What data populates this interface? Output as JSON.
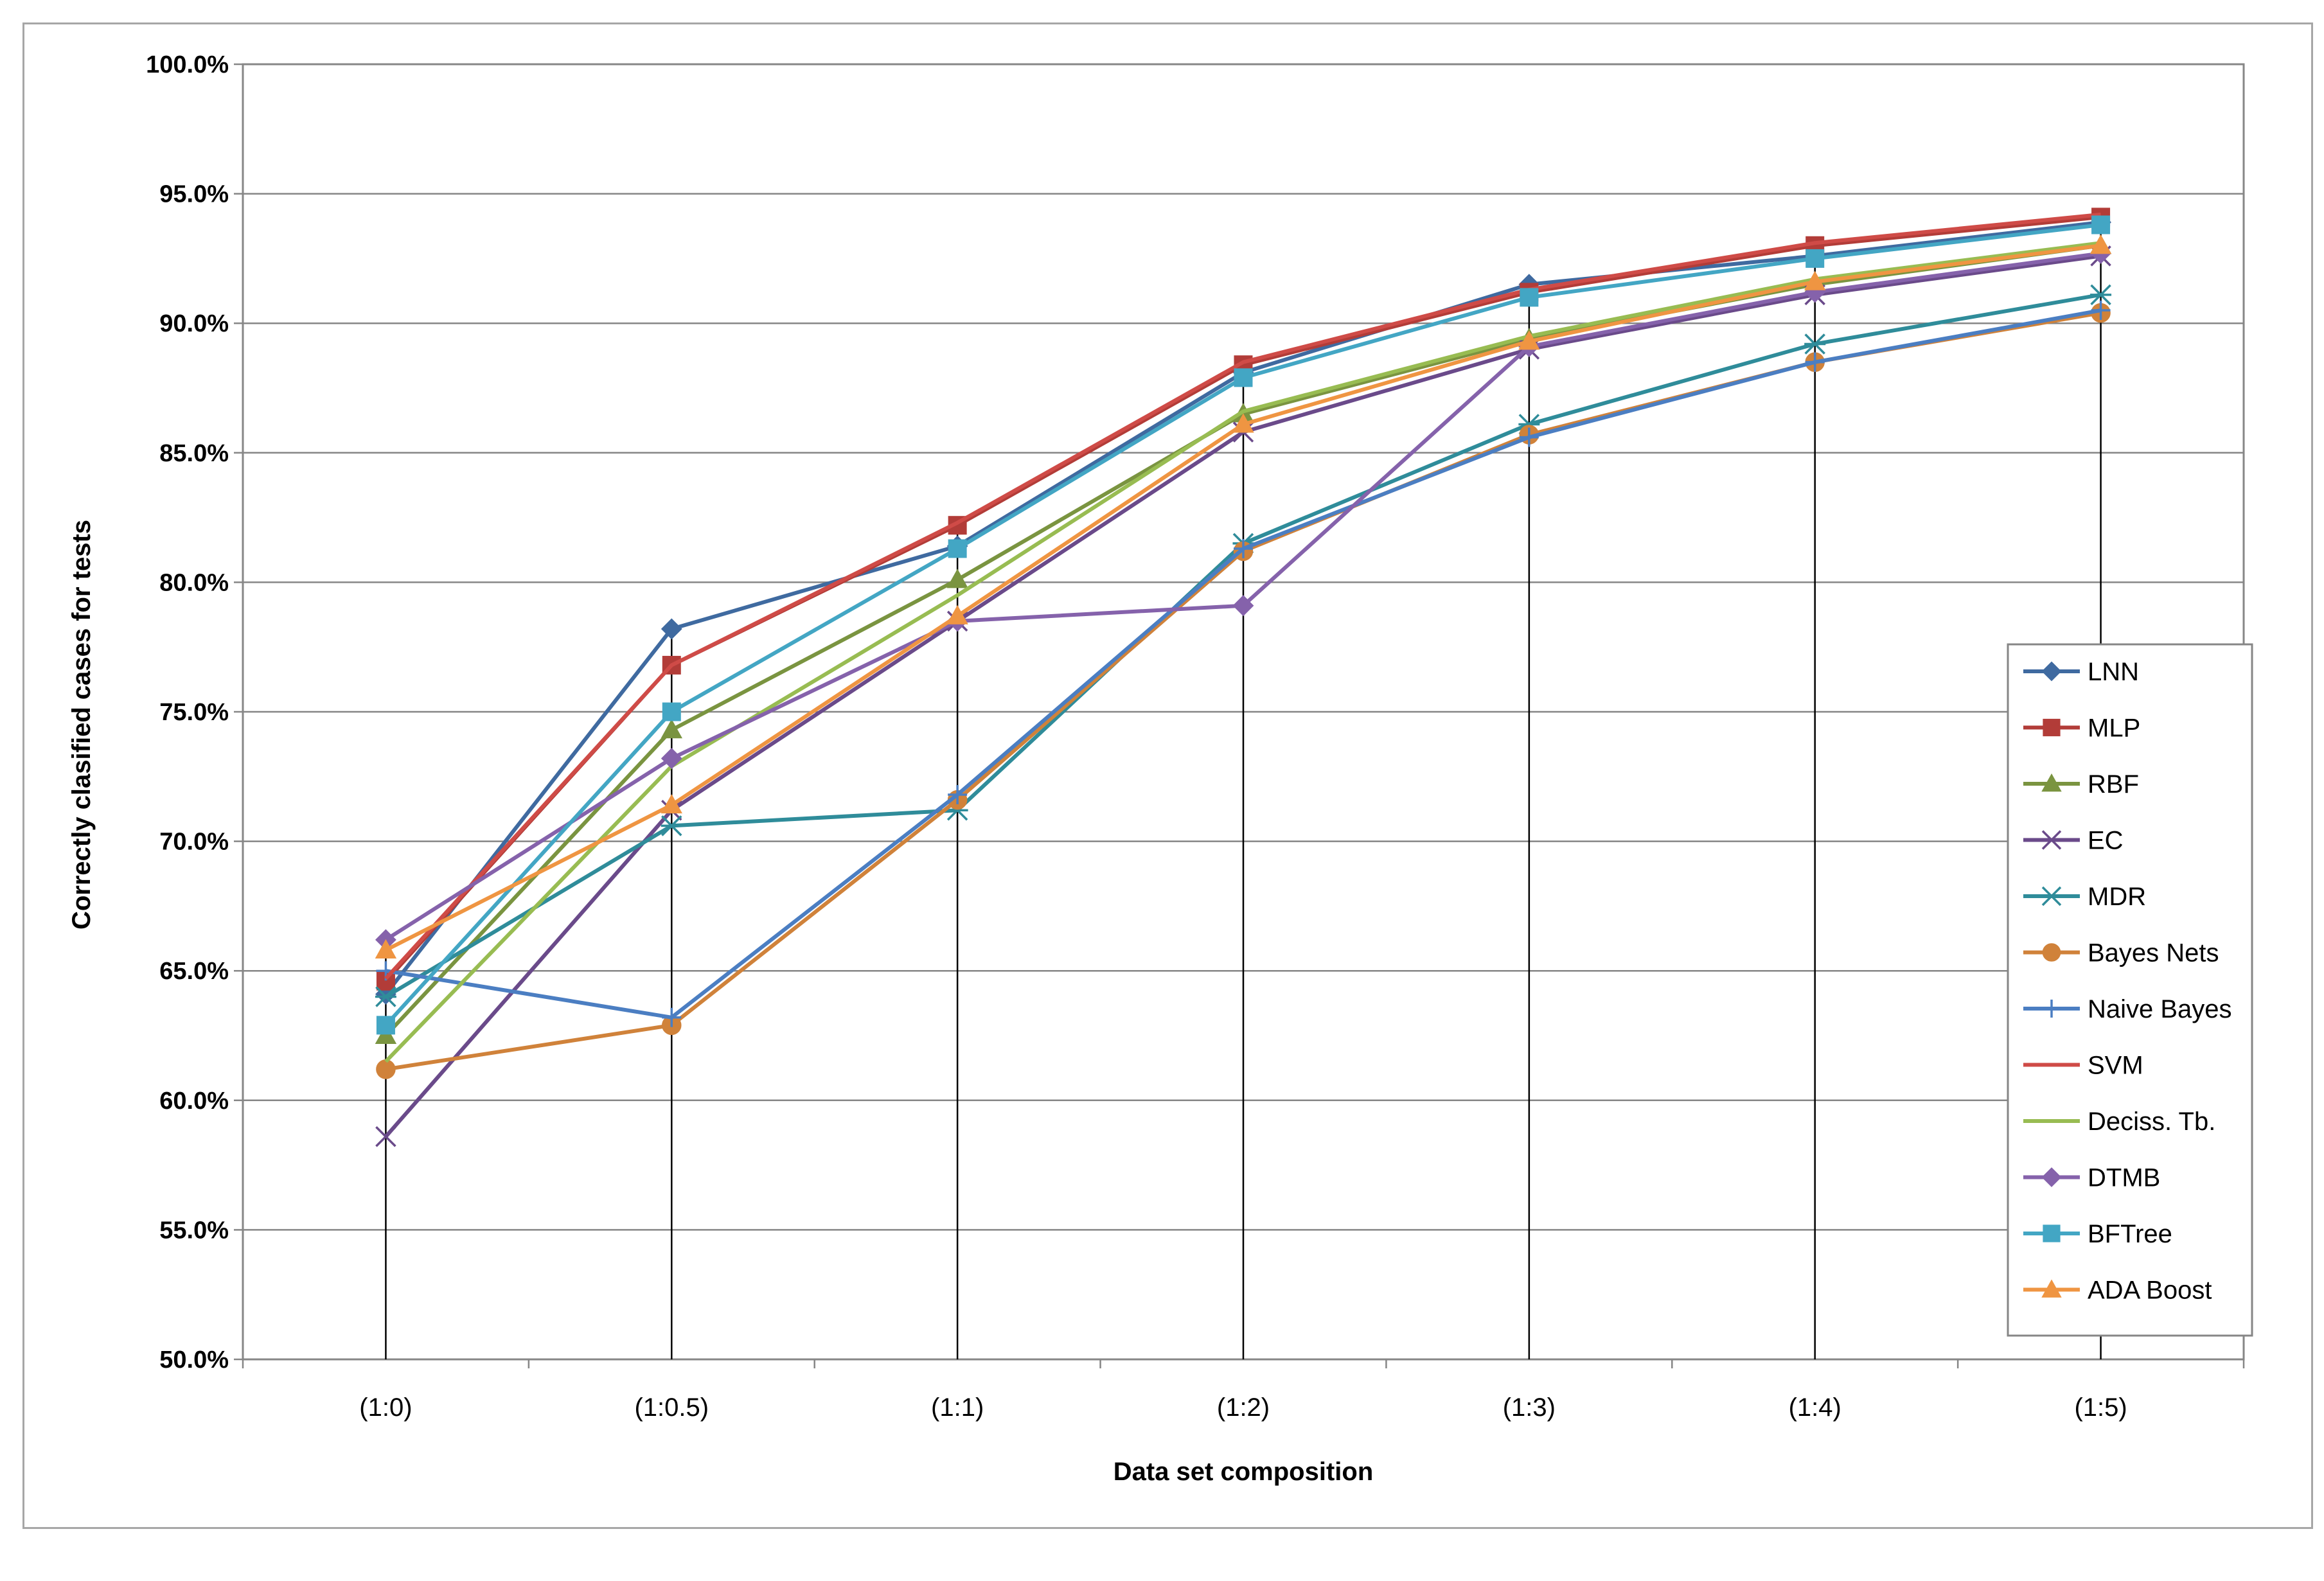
{
  "chart_data": {
    "type": "line",
    "title": "",
    "xlabel": "Data set composition",
    "ylabel": "Correctly clasified cases for tests",
    "categories": [
      "(1:0)",
      "(1:0.5)",
      "(1:1)",
      "(1:2)",
      "(1:3)",
      "(1:4)",
      "(1:5)"
    ],
    "ylim": [
      0.5,
      1.0
    ],
    "yticks": [
      {
        "value": 0.5,
        "label": "50.0%"
      },
      {
        "value": 0.55,
        "label": "55.0%"
      },
      {
        "value": 0.6,
        "label": "60.0%"
      },
      {
        "value": 0.65,
        "label": "65.0%"
      },
      {
        "value": 0.7,
        "label": "70.0%"
      },
      {
        "value": 0.75,
        "label": "75.0%"
      },
      {
        "value": 0.8,
        "label": "80.0%"
      },
      {
        "value": 0.85,
        "label": "85.0%"
      },
      {
        "value": 0.9,
        "label": "90.0%"
      },
      {
        "value": 0.95,
        "label": "95.0%"
      },
      {
        "value": 1.0,
        "label": "100.0%"
      }
    ],
    "grid": true,
    "legend_position": "right",
    "series": [
      {
        "name": "LNN",
        "color": "#3f6aa0",
        "marker": "diamond",
        "values": [
          0.641,
          0.782,
          0.814,
          0.881,
          0.915,
          0.926,
          0.939
        ]
      },
      {
        "name": "MLP",
        "color": "#b23c38",
        "marker": "square",
        "values": [
          0.646,
          0.768,
          0.822,
          0.884,
          0.912,
          0.93,
          0.941
        ]
      },
      {
        "name": "RBF",
        "color": "#7a9440",
        "marker": "triangle",
        "values": [
          0.625,
          0.743,
          0.801,
          0.865,
          0.894,
          0.915,
          0.93
        ]
      },
      {
        "name": "EC",
        "color": "#6a4a8a",
        "marker": "x",
        "values": [
          0.586,
          0.712,
          0.785,
          0.858,
          0.89,
          0.911,
          0.926
        ]
      },
      {
        "name": "MDR",
        "color": "#2f8c9a",
        "marker": "star",
        "values": [
          0.64,
          0.706,
          0.712,
          0.815,
          0.861,
          0.892,
          0.911
        ]
      },
      {
        "name": "Bayes Nets",
        "color": "#d0823a",
        "marker": "circle",
        "values": [
          0.612,
          0.629,
          0.716,
          0.812,
          0.857,
          0.885,
          0.904
        ]
      },
      {
        "name": "Naive Bayes",
        "color": "#4b7ec2",
        "marker": "plus",
        "values": [
          0.65,
          0.632,
          0.718,
          0.813,
          0.856,
          0.885,
          0.905
        ]
      },
      {
        "name": "SVM",
        "color": "#cf4b47",
        "marker": "none",
        "values": [
          0.647,
          0.768,
          0.823,
          0.885,
          0.913,
          0.931,
          0.942
        ]
      },
      {
        "name": "Deciss. Tb.",
        "color": "#98bc52",
        "marker": "none",
        "values": [
          0.615,
          0.729,
          0.795,
          0.866,
          0.895,
          0.917,
          0.931
        ]
      },
      {
        "name": "DTMB",
        "color": "#8562ab",
        "marker": "diamond",
        "values": [
          0.662,
          0.732,
          0.785,
          0.791,
          0.891,
          0.912,
          0.927
        ]
      },
      {
        "name": "BFTree",
        "color": "#43a6c4",
        "marker": "square",
        "values": [
          0.629,
          0.75,
          0.813,
          0.879,
          0.91,
          0.925,
          0.938
        ]
      },
      {
        "name": "ADA Boost",
        "color": "#ef9542",
        "marker": "triangle",
        "values": [
          0.658,
          0.714,
          0.787,
          0.861,
          0.893,
          0.916,
          0.93
        ]
      }
    ]
  }
}
